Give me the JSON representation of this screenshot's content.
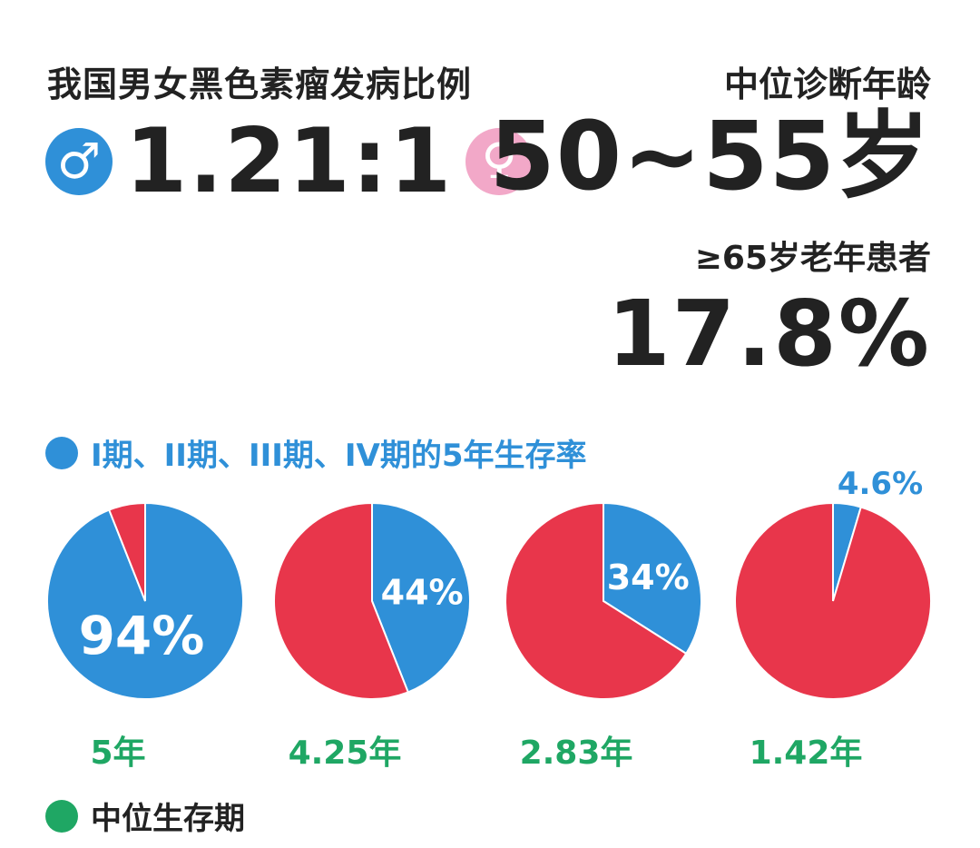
{
  "header": {
    "ratio_title": "我国男女黑色素瘤发病比例",
    "male_symbol": "♂",
    "ratio_value": "1.21:1",
    "female_symbol": "♀",
    "age_title": "中位诊断年龄",
    "age_value": "50~55岁",
    "elderly_title": "≥65岁老年患者",
    "elderly_value": "17.8%"
  },
  "legends": {
    "survival_rate": "I期、II期、III期、IV期的5年生存率",
    "median_survival": "中位生存期"
  },
  "colors": {
    "blue": "#2f90d8",
    "red": "#e8364b",
    "green": "#1fa764",
    "pink": "#f2a8c8",
    "dark": "#222222"
  },
  "chart_data": {
    "type": "pie",
    "title": "I期、II期、III期、IV期的5年生存率",
    "categories": [
      "I期",
      "II期",
      "III期",
      "IV期"
    ],
    "values": [
      94,
      44,
      34,
      4.6
    ],
    "value_labels": [
      "94%",
      "44%",
      "34%",
      "4.6%"
    ],
    "median_survival": [
      "5年",
      "4.25年",
      "2.83年",
      "1.42年"
    ],
    "median_survival_years": [
      5,
      4.25,
      2.83,
      1.42
    ]
  }
}
